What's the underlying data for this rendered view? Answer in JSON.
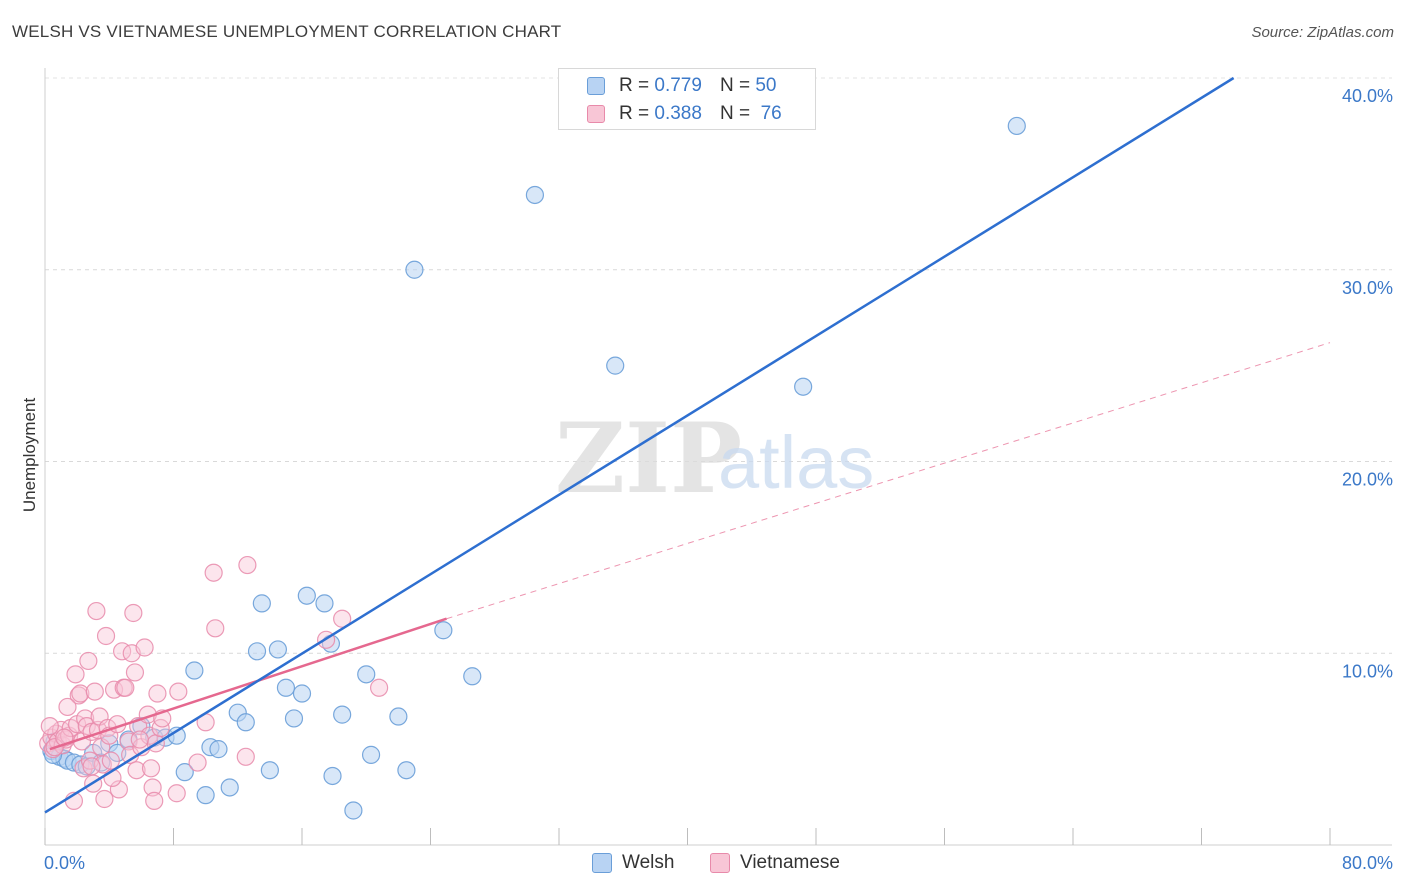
{
  "title": "WELSH VS VIETNAMESE UNEMPLOYMENT CORRELATION CHART",
  "source": "Source: ZipAtlas.com",
  "watermark": {
    "zip": "ZIP",
    "atlas": "atlas"
  },
  "colors": {
    "welsh_fill": "#b8d3f3",
    "welsh_stroke": "#6a9ed8",
    "welsh_line": "#2e6fd0",
    "viet_fill": "#f8c6d6",
    "viet_stroke": "#e88aaa",
    "viet_line": "#e5688f",
    "axis_label": "#3b78c8"
  },
  "legend": {
    "welsh": {
      "r_label": "R = ",
      "r_value": "0.779",
      "n_label": "N = ",
      "n_value": "50",
      "name": "Welsh"
    },
    "vietnamese": {
      "r_label": "R = ",
      "r_value": "0.388",
      "n_label": "N = ",
      "n_value": "76",
      "name": "Vietnamese"
    }
  },
  "chart_data": {
    "type": "scatter",
    "title": "WELSH VS VIETNAMESE UNEMPLOYMENT CORRELATION CHART",
    "xlabel": "",
    "ylabel": "Unemployment",
    "xlim": [
      0,
      80
    ],
    "ylim": [
      0,
      40
    ],
    "x_tick_labels": [
      "0.0%",
      "80.0%"
    ],
    "y_ticks": [
      10,
      20,
      30,
      40
    ],
    "y_tick_labels": [
      "10.0%",
      "20.0%",
      "30.0%",
      "40.0%"
    ],
    "series": [
      {
        "name": "Welsh",
        "trend": {
          "x": [
            0,
            74
          ],
          "y": [
            1.7,
            40.0
          ],
          "style": "solid"
        },
        "points": [
          [
            0.4,
            4.9
          ],
          [
            0.6,
            5.4
          ],
          [
            0.9,
            4.6
          ],
          [
            1.2,
            4.5
          ],
          [
            1.4,
            4.4
          ],
          [
            1.8,
            4.3
          ],
          [
            2.2,
            4.2
          ],
          [
            2.6,
            4.1
          ],
          [
            3.0,
            4.8
          ],
          [
            3.5,
            4.3
          ],
          [
            4.0,
            5.3
          ],
          [
            4.5,
            4.8
          ],
          [
            5.2,
            5.5
          ],
          [
            6.0,
            6.2
          ],
          [
            6.8,
            5.6
          ],
          [
            7.5,
            5.6
          ],
          [
            8.2,
            5.7
          ],
          [
            8.7,
            3.8
          ],
          [
            9.3,
            9.1
          ],
          [
            10.0,
            2.6
          ],
          [
            10.3,
            5.1
          ],
          [
            10.8,
            5.0
          ],
          [
            11.5,
            3.0
          ],
          [
            12.0,
            6.9
          ],
          [
            12.5,
            6.4
          ],
          [
            13.2,
            10.1
          ],
          [
            13.5,
            12.6
          ],
          [
            14.0,
            3.9
          ],
          [
            14.5,
            10.2
          ],
          [
            15.0,
            8.2
          ],
          [
            15.5,
            6.6
          ],
          [
            16.0,
            7.9
          ],
          [
            16.3,
            13.0
          ],
          [
            17.4,
            12.6
          ],
          [
            17.8,
            10.5
          ],
          [
            17.9,
            3.6
          ],
          [
            18.5,
            6.8
          ],
          [
            19.2,
            1.8
          ],
          [
            20.0,
            8.9
          ],
          [
            20.3,
            4.7
          ],
          [
            22.0,
            6.7
          ],
          [
            22.5,
            3.9
          ],
          [
            23.0,
            30.0
          ],
          [
            24.8,
            11.2
          ],
          [
            26.6,
            8.8
          ],
          [
            30.5,
            33.9
          ],
          [
            35.5,
            25.0
          ],
          [
            47.2,
            23.9
          ],
          [
            60.5,
            37.5
          ],
          [
            0.5,
            4.7
          ]
        ]
      },
      {
        "name": "Vietnamese",
        "trend": {
          "x": [
            0.3,
            25.0
          ],
          "y": [
            5.0,
            11.8
          ],
          "style": "solid"
        },
        "trend_extension": {
          "x": [
            25.0,
            80.0
          ],
          "y": [
            11.8,
            26.2
          ],
          "style": "dashed"
        },
        "points": [
          [
            0.2,
            5.3
          ],
          [
            0.4,
            5.6
          ],
          [
            0.5,
            5.0
          ],
          [
            0.7,
            5.8
          ],
          [
            0.8,
            5.4
          ],
          [
            1.0,
            6.0
          ],
          [
            1.1,
            5.2
          ],
          [
            1.3,
            5.5
          ],
          [
            1.5,
            5.7
          ],
          [
            1.6,
            6.1
          ],
          [
            1.8,
            2.3
          ],
          [
            1.9,
            8.9
          ],
          [
            2.0,
            6.3
          ],
          [
            2.1,
            7.8
          ],
          [
            2.2,
            7.9
          ],
          [
            2.3,
            5.4
          ],
          [
            2.4,
            4.0
          ],
          [
            2.5,
            6.6
          ],
          [
            2.6,
            6.2
          ],
          [
            2.7,
            9.6
          ],
          [
            2.8,
            4.4
          ],
          [
            2.9,
            5.9
          ],
          [
            3.0,
            3.2
          ],
          [
            3.1,
            8.0
          ],
          [
            3.2,
            12.2
          ],
          [
            3.3,
            6.0
          ],
          [
            3.4,
            6.7
          ],
          [
            3.5,
            5.1
          ],
          [
            3.6,
            4.2
          ],
          [
            3.7,
            2.4
          ],
          [
            3.8,
            10.9
          ],
          [
            3.9,
            6.1
          ],
          [
            4.0,
            5.7
          ],
          [
            4.1,
            4.4
          ],
          [
            4.3,
            8.1
          ],
          [
            4.5,
            6.3
          ],
          [
            4.6,
            2.9
          ],
          [
            4.8,
            10.1
          ],
          [
            4.9,
            8.2
          ],
          [
            5.0,
            8.2
          ],
          [
            5.2,
            5.4
          ],
          [
            5.3,
            4.7
          ],
          [
            5.4,
            10.0
          ],
          [
            5.5,
            12.1
          ],
          [
            5.6,
            9.0
          ],
          [
            5.7,
            3.9
          ],
          [
            5.8,
            6.2
          ],
          [
            6.0,
            5.1
          ],
          [
            6.2,
            10.3
          ],
          [
            6.4,
            6.8
          ],
          [
            6.5,
            5.7
          ],
          [
            6.6,
            4.0
          ],
          [
            6.7,
            3.0
          ],
          [
            6.8,
            2.3
          ],
          [
            6.9,
            5.3
          ],
          [
            7.0,
            7.9
          ],
          [
            7.2,
            6.1
          ],
          [
            7.3,
            6.6
          ],
          [
            8.2,
            2.7
          ],
          [
            8.3,
            8.0
          ],
          [
            10.0,
            6.4
          ],
          [
            10.5,
            14.2
          ],
          [
            10.6,
            11.3
          ],
          [
            12.5,
            4.6
          ],
          [
            12.6,
            14.6
          ],
          [
            17.5,
            10.7
          ],
          [
            18.5,
            11.8
          ],
          [
            20.8,
            8.2
          ],
          [
            0.3,
            6.2
          ],
          [
            0.6,
            5.1
          ],
          [
            1.4,
            7.2
          ],
          [
            4.2,
            3.5
          ],
          [
            5.9,
            5.5
          ],
          [
            9.5,
            4.3
          ],
          [
            2.9,
            4.1
          ],
          [
            1.2,
            5.6
          ]
        ]
      }
    ]
  }
}
